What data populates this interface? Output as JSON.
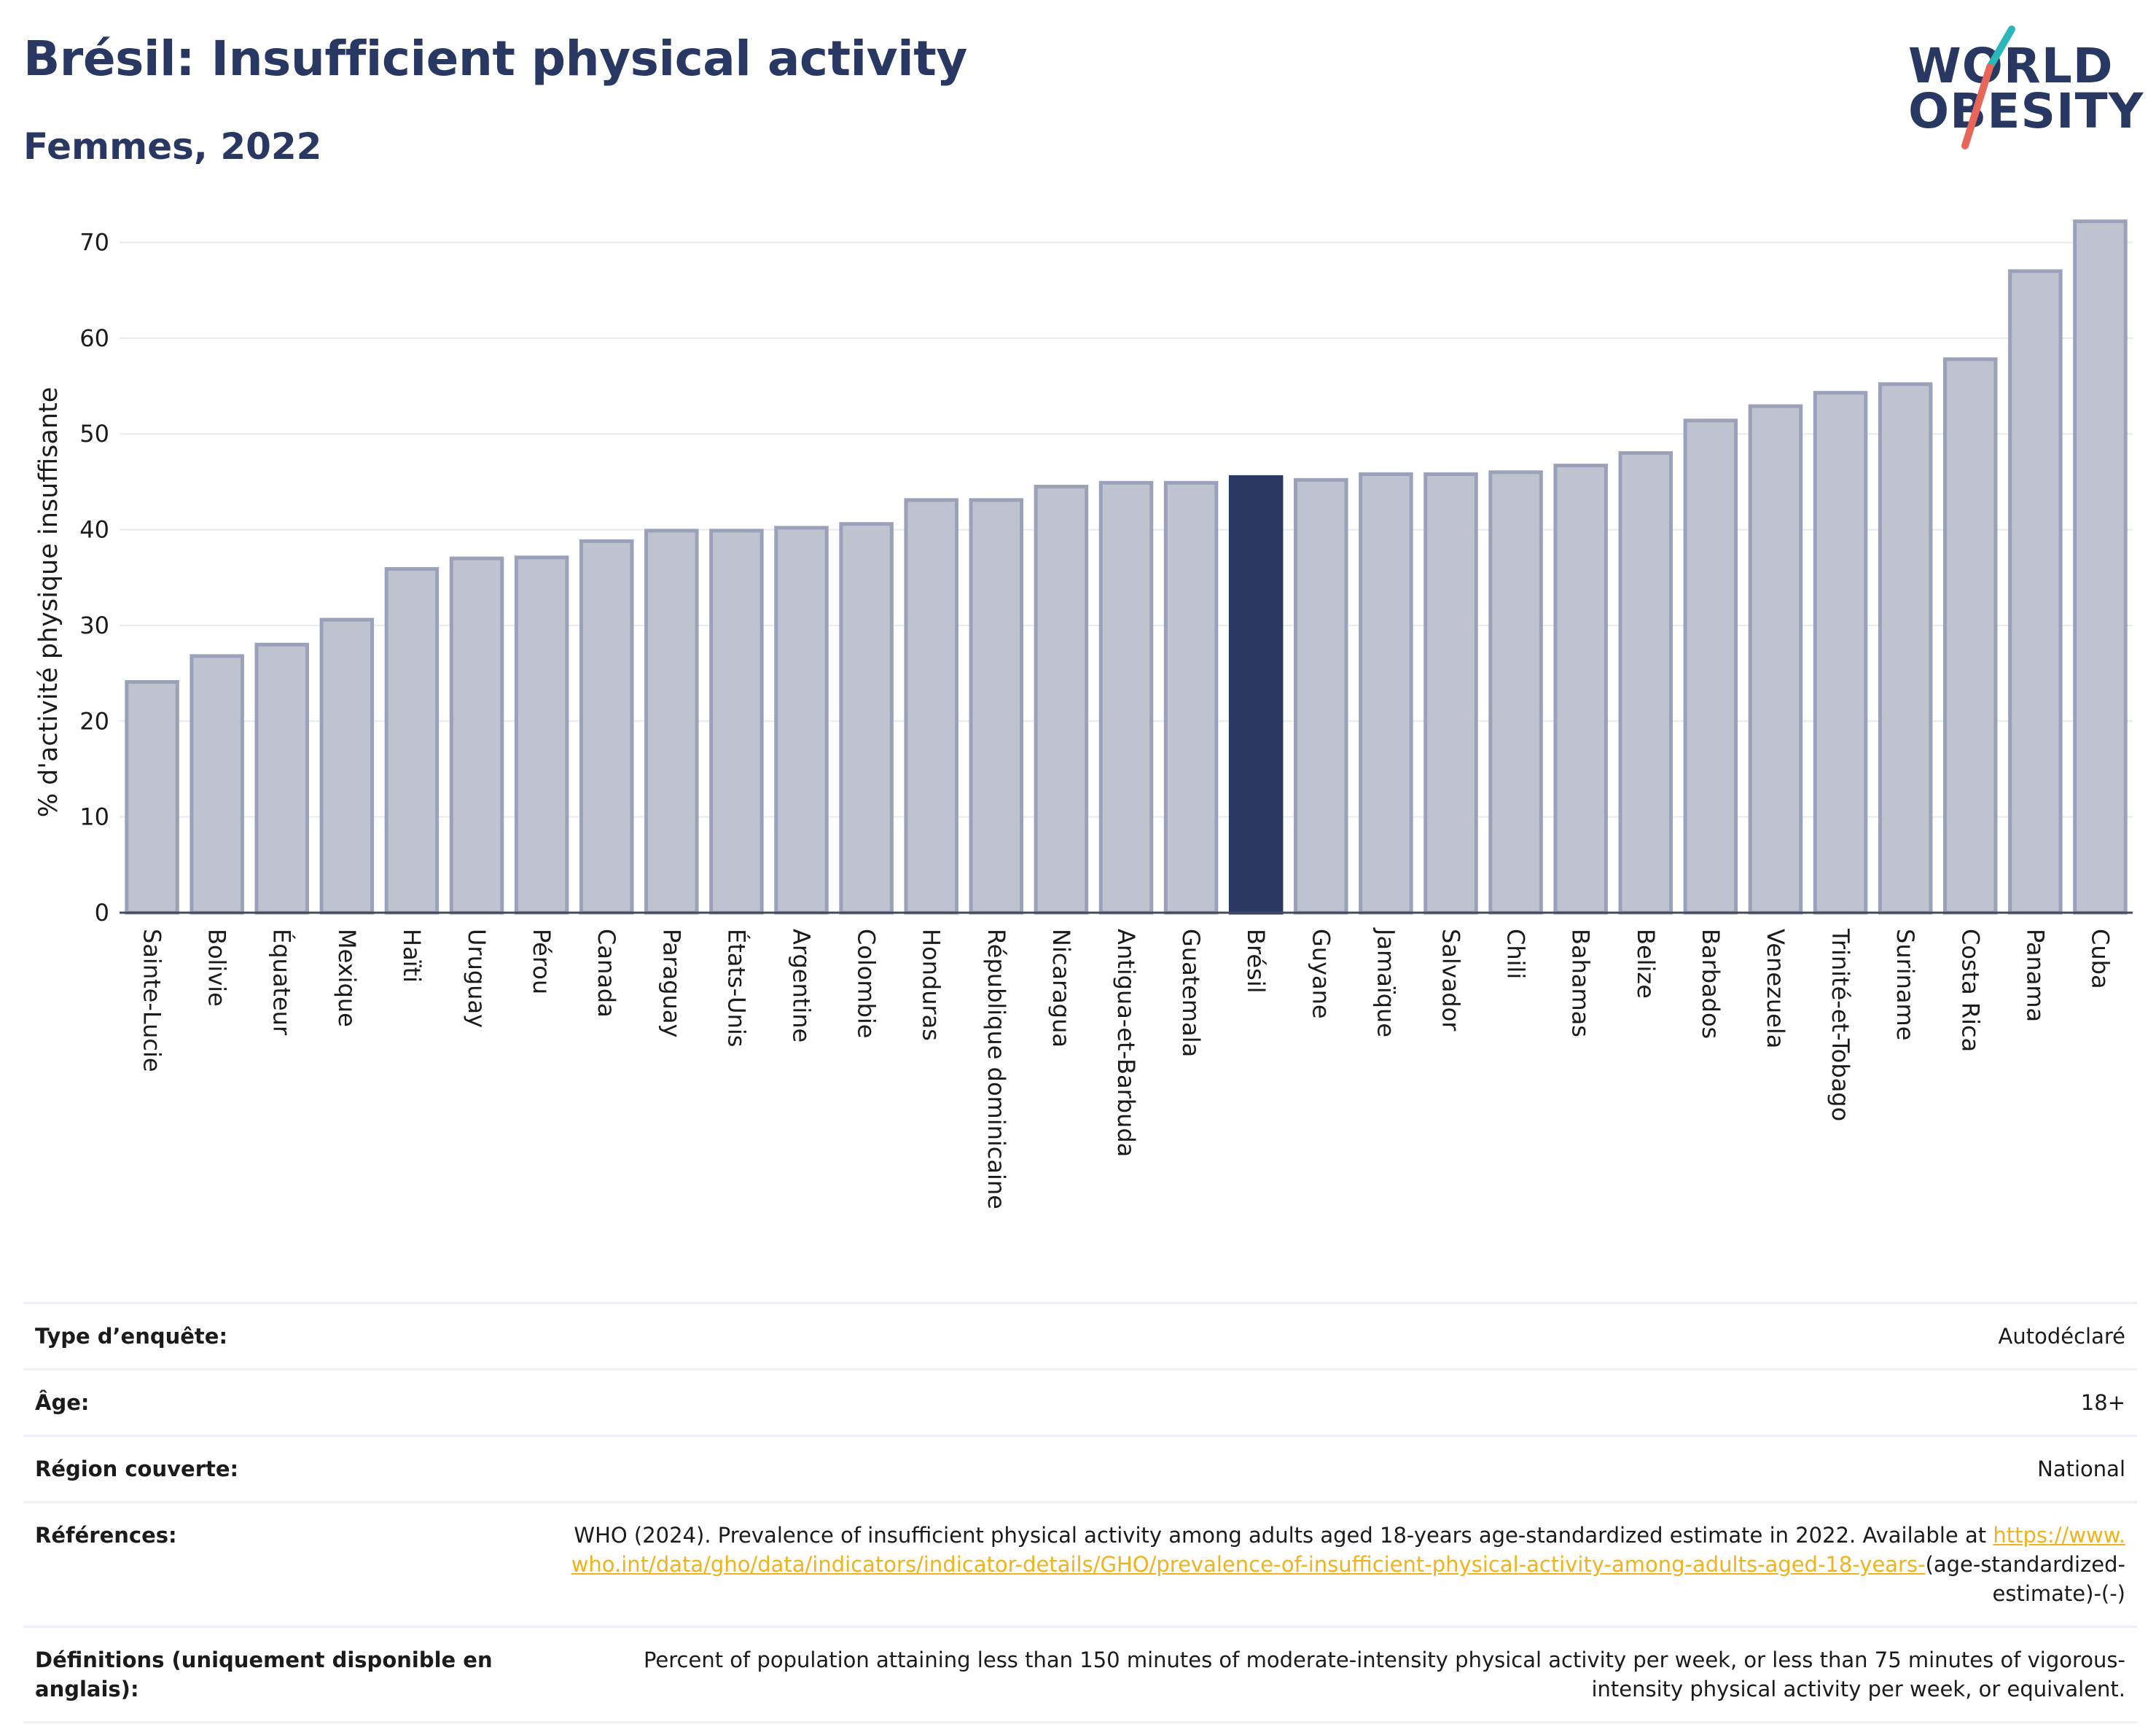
{
  "title": "Brésil: Insufficient physical activity",
  "subtitle": "Femmes, 2022",
  "logo": {
    "line1": "WORLD",
    "line2": "OBESITY",
    "accent_colors": [
      "#2bb6b9",
      "#e8655a"
    ]
  },
  "colors": {
    "bar": "#bfc3d0",
    "bar_stroke": "#9aa1b8",
    "highlight": "#283862",
    "title": "#283862",
    "link": "#f2b21a"
  },
  "chart_data": {
    "type": "bar",
    "categories": [
      "Sainte-Lucie",
      "Bolivie",
      "Équateur",
      "Mexique",
      "Haïti",
      "Uruguay",
      "Pérou",
      "Canada",
      "Paraguay",
      "États-Unis",
      "Argentine",
      "Colombie",
      "Honduras",
      "République dominicaine",
      "Nicaragua",
      "Antigua-et-Barbuda",
      "Guatemala",
      "Brésil",
      "Guyane",
      "Jamaïque",
      "Salvador",
      "Chili",
      "Bahamas",
      "Belize",
      "Barbados",
      "Venezuela",
      "Trinité-et-Tobago",
      "Suriname",
      "Costa Rica",
      "Panama",
      "Cuba"
    ],
    "values": [
      24.1,
      26.8,
      28.0,
      30.6,
      35.9,
      37.0,
      37.1,
      38.8,
      39.9,
      39.9,
      40.2,
      40.6,
      43.1,
      43.1,
      44.5,
      44.9,
      44.9,
      45.5,
      45.2,
      45.8,
      45.8,
      46.0,
      46.7,
      48.0,
      51.4,
      52.9,
      54.3,
      55.2,
      57.8,
      67.0,
      72.2
    ],
    "highlight": "Brésil",
    "ylabel": "% d'activité physique insuffisante",
    "xlabel": "",
    "yticks": [
      0,
      10,
      20,
      30,
      40,
      50,
      60,
      70
    ],
    "ylim": [
      0,
      74
    ],
    "grid": true
  },
  "meta": {
    "survey_label": "Type d’enquête:",
    "survey_value": "Autodéclaré",
    "age_label": "Âge:",
    "age_value": "18+",
    "region_label": "Région couverte:",
    "region_value": "National",
    "refs_label": "Références:",
    "refs_text": "WHO (2024). Prevalence of insufficient physical activity among adults aged 18-years age-standardized estimate in 2022. Available at",
    "refs_link": "https://www.who.int/data/gho/data/indicators/indicator-details/GHO/prevalence-of-insufficient-physical-activity-among-adults-aged-18-years-",
    "refs_suffix": "(age-standardized-estimate)-(-)",
    "defs_label": "Définitions (uniquement disponible en anglais):",
    "defs_text": "Percent of population attaining less than 150 minutes of moderate-intensity physical activity per week, or less than 75 minutes of vigorous-intensity physical activity per week, or equivalent."
  }
}
